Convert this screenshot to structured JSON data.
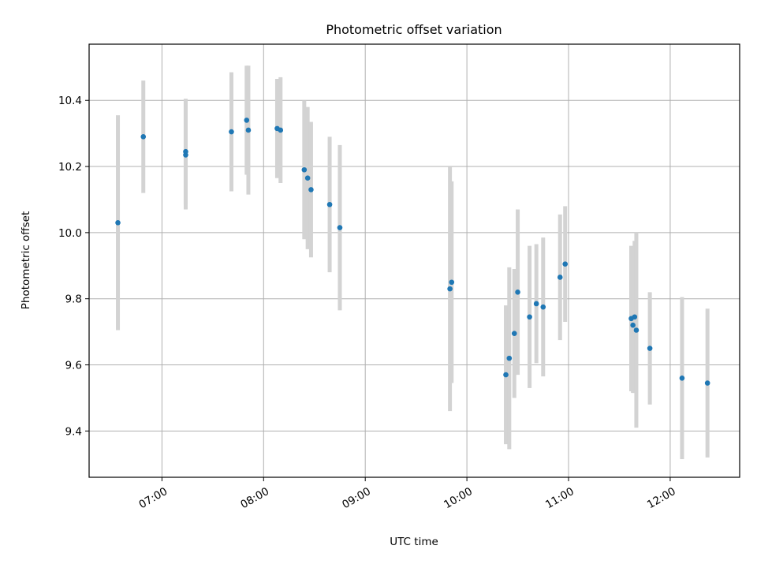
{
  "chart_data": {
    "type": "scatter",
    "title": "Photometric offset variation",
    "xlabel": "UTC time",
    "ylabel": "Photometric offset",
    "xlim": [
      "06:17",
      "12:41"
    ],
    "ylim": [
      9.26,
      10.57
    ],
    "grid": true,
    "x_ticks": [
      "07:00",
      "08:00",
      "09:00",
      "10:00",
      "11:00",
      "12:00"
    ],
    "y_ticks": [
      "9.4",
      "9.6",
      "9.8",
      "10.0",
      "10.2",
      "10.4"
    ],
    "colors": {
      "points": "#1f77b4",
      "errorbars": "#d3d3d3",
      "grid": "#b0b0b0"
    },
    "points": [
      {
        "x": "06:34",
        "y": 10.03,
        "err": 0.325
      },
      {
        "x": "06:49",
        "y": 10.29,
        "err": 0.17
      },
      {
        "x": "07:14",
        "y": 10.235,
        "err": 0.165
      },
      {
        "x": "07:14",
        "y": 10.245,
        "err": 0.16
      },
      {
        "x": "07:41",
        "y": 10.305,
        "err": 0.18
      },
      {
        "x": "07:50",
        "y": 10.34,
        "err": 0.165
      },
      {
        "x": "07:51",
        "y": 10.31,
        "err": 0.195
      },
      {
        "x": "08:08",
        "y": 10.315,
        "err": 0.15
      },
      {
        "x": "08:10",
        "y": 10.31,
        "err": 0.16
      },
      {
        "x": "08:24",
        "y": 10.19,
        "err": 0.21
      },
      {
        "x": "08:26",
        "y": 10.165,
        "err": 0.215
      },
      {
        "x": "08:28",
        "y": 10.13,
        "err": 0.205
      },
      {
        "x": "08:39",
        "y": 10.085,
        "err": 0.205
      },
      {
        "x": "08:45",
        "y": 10.015,
        "err": 0.25
      },
      {
        "x": "09:50",
        "y": 9.83,
        "err": 0.37
      },
      {
        "x": "09:51",
        "y": 9.85,
        "err": 0.305
      },
      {
        "x": "10:23",
        "y": 9.57,
        "err": 0.21
      },
      {
        "x": "10:25",
        "y": 9.62,
        "err": 0.275
      },
      {
        "x": "10:28",
        "y": 9.695,
        "err": 0.195
      },
      {
        "x": "10:30",
        "y": 9.82,
        "err": 0.25
      },
      {
        "x": "10:37",
        "y": 9.745,
        "err": 0.215
      },
      {
        "x": "10:41",
        "y": 9.785,
        "err": 0.18
      },
      {
        "x": "10:45",
        "y": 9.775,
        "err": 0.21
      },
      {
        "x": "10:55",
        "y": 9.865,
        "err": 0.19
      },
      {
        "x": "10:58",
        "y": 9.905,
        "err": 0.175
      },
      {
        "x": "11:37",
        "y": 9.74,
        "err": 0.22
      },
      {
        "x": "11:38",
        "y": 9.72,
        "err": 0.205
      },
      {
        "x": "11:39",
        "y": 9.745,
        "err": 0.23
      },
      {
        "x": "11:40",
        "y": 9.705,
        "err": 0.295
      },
      {
        "x": "11:48",
        "y": 9.65,
        "err": 0.17
      },
      {
        "x": "12:07",
        "y": 9.56,
        "err": 0.245
      },
      {
        "x": "12:22",
        "y": 9.545,
        "err": 0.225
      }
    ]
  }
}
